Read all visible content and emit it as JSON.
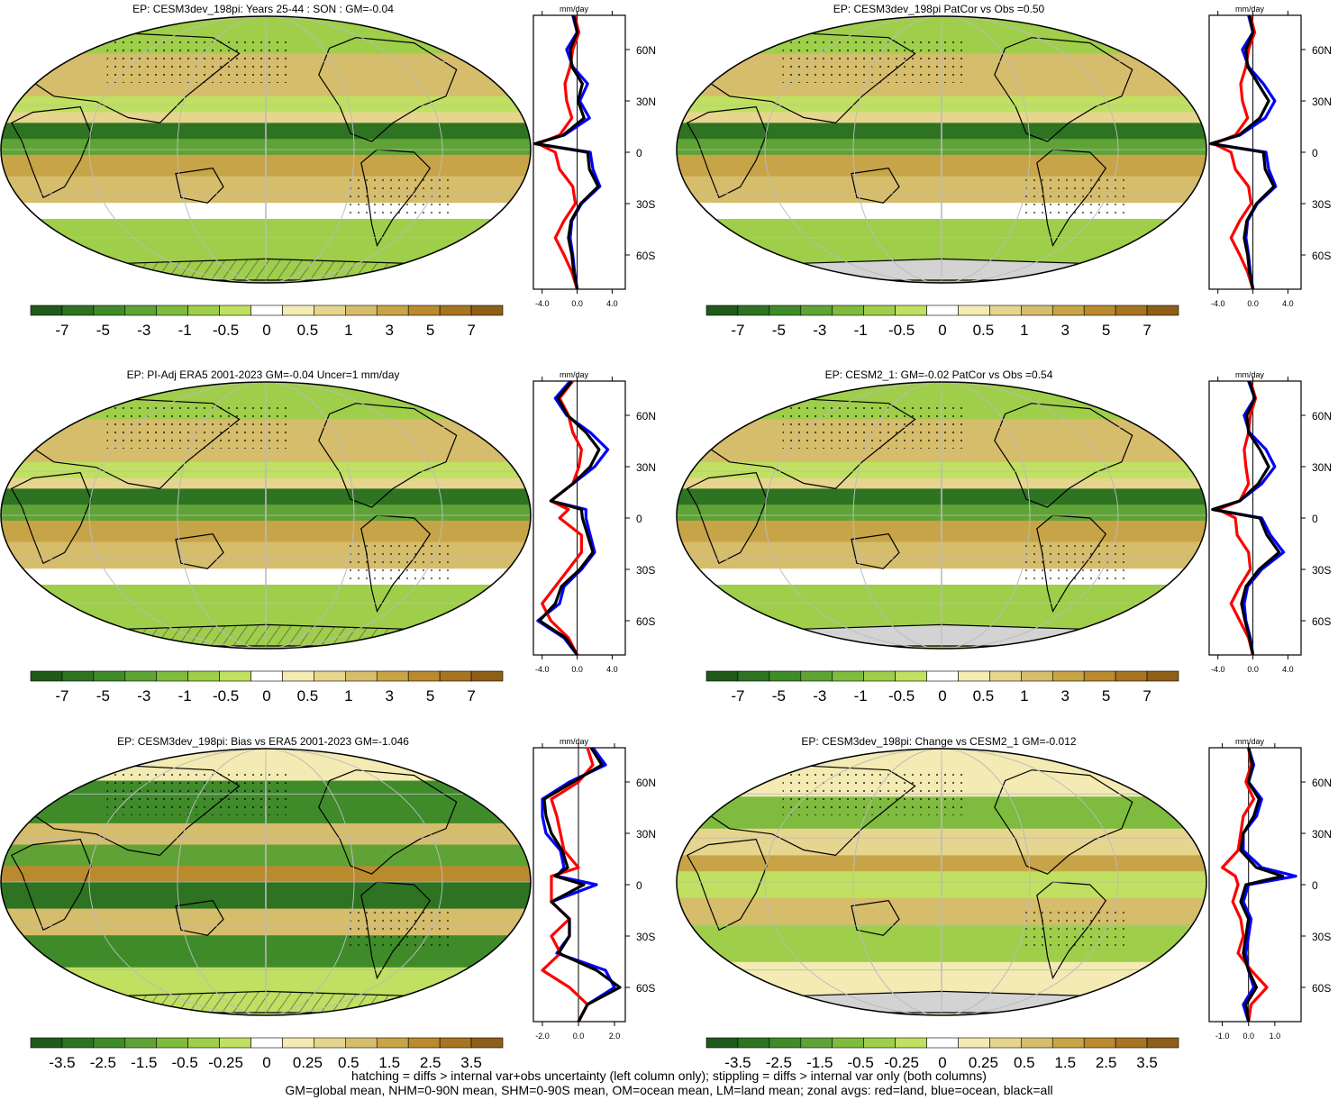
{
  "panels": [
    {
      "title": "EP: CESM3dev_198pi: Years 25-44 : SON : GM=-0.04",
      "colorbar": "full",
      "zonal_ticks": [
        "-4.0",
        "0.0",
        "4.0"
      ],
      "hatched_antarctica": true,
      "stippled": true
    },
    {
      "title": "EP: CESM3dev_198pi PatCor vs Obs =0.50",
      "colorbar": "full",
      "zonal_ticks": [
        "-4.0",
        "0.0",
        "4.0"
      ],
      "hatched_antarctica": false,
      "stippled": true
    },
    {
      "title": "EP: PI-Adj ERA5 2001-2023 GM=-0.04 Uncer=1 mm/day",
      "colorbar": "full",
      "zonal_ticks": [
        "-4.0",
        "0.0",
        "4.0"
      ],
      "hatched_antarctica": true,
      "stippled": true
    },
    {
      "title": "EP: CESM2_1: GM=-0.02 PatCor vs Obs =0.54",
      "colorbar": "full",
      "zonal_ticks": [
        "-4.0",
        "0.0",
        "4.0"
      ],
      "hatched_antarctica": false,
      "stippled": true
    },
    {
      "title": "EP: CESM3dev_198pi: Bias vs ERA5 2001-2023  GM=-1.046",
      "colorbar": "diff",
      "zonal_ticks": [
        "-2.0",
        "0.0",
        "2.0"
      ],
      "hatched_antarctica": true,
      "stippled": true
    },
    {
      "title": "EP: CESM3dev_198pi: Change vs CESM2_1 GM=-0.012",
      "colorbar": "diff",
      "zonal_ticks": [
        "-1.0",
        "0.0",
        "1.0"
      ],
      "hatched_antarctica": false,
      "stippled": true
    }
  ],
  "colorbars": {
    "full": {
      "labels": [
        "-7",
        "-5",
        "-3",
        "-1",
        "-0.5",
        "0",
        "0.5",
        "1",
        "3",
        "5",
        "7"
      ]
    },
    "diff": {
      "labels": [
        "-3.5",
        "-2.5",
        "-1.5",
        "-0.5",
        "-0.25",
        "0",
        "0.25",
        "0.5",
        "1.5",
        "2.5",
        "3.5"
      ]
    }
  },
  "palette": [
    "#1f5a1a",
    "#2e7322",
    "#3f8b2a",
    "#5fa336",
    "#7fbb3e",
    "#9fce4a",
    "#bfe060",
    "#ffffff",
    "#f3ebb3",
    "#e6d58e",
    "#d6bd6b",
    "#c8a448",
    "#b98a2e",
    "#a67422",
    "#8e5f18"
  ],
  "zonal_units": "mm/day",
  "lat_labels": [
    "60N",
    "30N",
    "0",
    "30S",
    "60S"
  ],
  "zonal_line_colors": {
    "land": "#ff0000",
    "ocean": "#0000ff",
    "all": "#000000"
  },
  "footer": [
    "hatching = diffs > internal var+obs uncertainty (left column only); stippling = diffs > internal var only (both columns)",
    "GM=global mean, NHM=0-90N mean, SHM=0-90S mean, OM=ocean mean, LM=land mean; zonal avgs: red=land, blue=ocean, black=all"
  ],
  "chart_data": [
    {
      "type": "line",
      "title": "EP: CESM3dev_198pi: Years 25-44 : SON : GM=-0.04",
      "xlabel": "mm/day",
      "xlim": [
        -5,
        5.5
      ],
      "ylim": [
        -80,
        80
      ],
      "y_ticks": [
        60,
        30,
        0,
        -30,
        -60
      ],
      "y": [
        80,
        70,
        60,
        50,
        40,
        30,
        20,
        10,
        5,
        0,
        -10,
        -20,
        -30,
        -40,
        -50,
        -60,
        -70,
        -80
      ],
      "series": [
        {
          "name": "land",
          "color": "#ff0000",
          "values": [
            -0.3,
            0.2,
            -0.5,
            -0.8,
            -1.4,
            -1.2,
            -0.6,
            -2.0,
            -4.5,
            -2.5,
            -2.0,
            -0.5,
            -0.2,
            -1.5,
            -2.5,
            -1.5,
            -0.6,
            0
          ]
        },
        {
          "name": "ocean",
          "color": "#0000ff",
          "values": [
            -0.5,
            0,
            -1.2,
            -0.5,
            1.2,
            0.3,
            1.4,
            -1.5,
            -4.8,
            1.5,
            1.8,
            2.6,
            0.5,
            -0.6,
            -0.8,
            -0.5,
            -0.3,
            0
          ]
        },
        {
          "name": "all",
          "color": "#000000",
          "values": [
            -0.4,
            0,
            -0.8,
            -0.6,
            0.6,
            0.1,
            0.8,
            -1.6,
            -4.8,
            1.2,
            1.4,
            2.4,
            0.4,
            -0.7,
            -1.0,
            -0.6,
            -0.4,
            0
          ]
        }
      ]
    },
    {
      "type": "line",
      "title": "EP: CESM3dev_198pi PatCor vs Obs =0.50",
      "xlabel": "mm/day",
      "xlim": [
        -5,
        5.5
      ],
      "ylim": [
        -80,
        80
      ],
      "y_ticks": [
        60,
        30,
        0,
        -30,
        -60
      ],
      "y": [
        80,
        70,
        60,
        50,
        40,
        30,
        20,
        10,
        5,
        0,
        -10,
        -20,
        -30,
        -40,
        -50,
        -60,
        -70,
        -80
      ],
      "series": [
        {
          "name": "land",
          "color": "#ff0000",
          "values": [
            -0.3,
            0.2,
            -0.5,
            -0.8,
            -1.4,
            -1.2,
            -0.6,
            -2.0,
            -4.5,
            -2.5,
            -2.0,
            -0.5,
            -0.2,
            -1.5,
            -2.5,
            -1.5,
            -0.6,
            0
          ]
        },
        {
          "name": "ocean",
          "color": "#0000ff",
          "values": [
            -0.5,
            0,
            -1.2,
            -0.5,
            1.2,
            2.5,
            1.4,
            -1.5,
            -4.8,
            1.5,
            1.8,
            2.6,
            0.5,
            -0.6,
            -0.8,
            -0.5,
            -0.3,
            0
          ]
        },
        {
          "name": "all",
          "color": "#000000",
          "values": [
            -0.4,
            0,
            -0.8,
            -0.6,
            0.6,
            1.8,
            0.8,
            -1.6,
            -4.8,
            1.2,
            1.4,
            2.4,
            0.4,
            -0.7,
            -1.0,
            -0.6,
            -0.4,
            0
          ]
        }
      ]
    },
    {
      "type": "line",
      "title": "EP: PI-Adj ERA5 2001-2023 GM=-0.04 Uncer=1 mm/day",
      "xlabel": "mm/day",
      "xlim": [
        -5,
        5.5
      ],
      "ylim": [
        -80,
        80
      ],
      "y_ticks": [
        60,
        30,
        0,
        -30,
        -60
      ],
      "y": [
        80,
        70,
        60,
        50,
        40,
        30,
        20,
        10,
        5,
        0,
        -10,
        -20,
        -30,
        -40,
        -50,
        -60,
        -70,
        -80
      ],
      "series": [
        {
          "name": "land",
          "color": "#ff0000",
          "values": [
            -0.5,
            -2.0,
            -1.0,
            -0.5,
            0.5,
            0.2,
            -0.5,
            -3.0,
            -1.0,
            -2.0,
            0.5,
            0.5,
            -1.0,
            -2.5,
            -4.0,
            -3.0,
            -1.0,
            0
          ]
        },
        {
          "name": "ocean",
          "color": "#0000ff",
          "values": [
            -0.8,
            -2.5,
            -1.2,
            1.5,
            3.5,
            2.0,
            -0.5,
            -3.0,
            1.0,
            1.0,
            1.5,
            2.0,
            0.5,
            -1.5,
            -2.0,
            -4.5,
            -1.5,
            0
          ]
        },
        {
          "name": "all",
          "color": "#000000",
          "values": [
            -0.6,
            -2.2,
            -1.1,
            1.0,
            2.5,
            1.5,
            -0.5,
            -3.0,
            0.5,
            0.6,
            1.2,
            1.8,
            0.3,
            -1.8,
            -2.5,
            -4.3,
            -1.3,
            0
          ]
        }
      ]
    },
    {
      "type": "line",
      "title": "EP: CESM2_1: GM=-0.02 PatCor vs Obs =0.54",
      "xlabel": "mm/day",
      "xlim": [
        -5,
        5.5
      ],
      "ylim": [
        -80,
        80
      ],
      "y_ticks": [
        60,
        30,
        0,
        -30,
        -60
      ],
      "y": [
        80,
        70,
        60,
        50,
        40,
        30,
        20,
        10,
        5,
        0,
        -10,
        -20,
        -30,
        -40,
        -50,
        -60,
        -70,
        -80
      ],
      "series": [
        {
          "name": "land",
          "color": "#ff0000",
          "values": [
            -0.3,
            0.3,
            -0.3,
            -0.5,
            -1.0,
            -0.8,
            -0.5,
            -1.5,
            -4.0,
            -2.0,
            -1.8,
            -0.5,
            -0.3,
            -1.5,
            -2.5,
            -1.5,
            -0.5,
            0
          ]
        },
        {
          "name": "ocean",
          "color": "#0000ff",
          "values": [
            -0.5,
            0.2,
            -1.0,
            -0.4,
            1.5,
            2.5,
            1.0,
            -1.5,
            -4.6,
            1.0,
            2.0,
            3.5,
            1.0,
            -0.6,
            -1.0,
            -0.8,
            -0.3,
            0
          ]
        },
        {
          "name": "all",
          "color": "#000000",
          "values": [
            -0.4,
            0.2,
            -0.7,
            -0.5,
            0.8,
            1.8,
            0.6,
            -1.5,
            -4.6,
            0.8,
            1.6,
            3.0,
            0.7,
            -0.8,
            -1.3,
            -0.9,
            -0.4,
            0
          ]
        }
      ]
    },
    {
      "type": "line",
      "title": "EP: CESM3dev_198pi: Bias vs ERA5 2001-2023  GM=-1.046",
      "xlabel": "mm/day",
      "xlim": [
        -2.5,
        2.6
      ],
      "ylim": [
        -80,
        80
      ],
      "y_ticks": [
        60,
        30,
        0,
        -30,
        -60
      ],
      "y": [
        80,
        70,
        60,
        50,
        40,
        30,
        20,
        10,
        5,
        0,
        -10,
        -20,
        -30,
        -40,
        -50,
        -60,
        -70,
        -80
      ],
      "series": [
        {
          "name": "land",
          "color": "#ff0000",
          "values": [
            0.5,
            0.8,
            0,
            -1.5,
            -1.2,
            -1.0,
            -0.8,
            0,
            -1.5,
            -1.5,
            -1.5,
            -0.5,
            -1.5,
            -1.0,
            -2.0,
            -0.5,
            0.5,
            0
          ]
        },
        {
          "name": "ocean",
          "color": "#0000ff",
          "values": [
            0.8,
            1.5,
            -0.5,
            -2.0,
            -2.0,
            -1.8,
            -1.0,
            -0.8,
            -1.2,
            1.0,
            -1.5,
            -0.5,
            -0.5,
            -1.2,
            1.5,
            2.0,
            0.5,
            0
          ]
        },
        {
          "name": "all",
          "color": "#000000",
          "values": [
            0.7,
            1.3,
            -0.3,
            -1.9,
            -1.8,
            -1.5,
            -0.9,
            -0.6,
            -1.3,
            0.3,
            -1.5,
            -0.5,
            -0.5,
            -1.1,
            1.0,
            2.3,
            0.5,
            0
          ]
        }
      ]
    },
    {
      "type": "line",
      "title": "EP: CESM3dev_198pi: Change vs CESM2_1 GM=-0.012",
      "xlabel": "mm/day",
      "xlim": [
        -1.5,
        2.0
      ],
      "ylim": [
        -80,
        80
      ],
      "y_ticks": [
        60,
        30,
        0,
        -30,
        -60
      ],
      "y": [
        80,
        70,
        60,
        50,
        40,
        30,
        20,
        10,
        5,
        0,
        -10,
        -20,
        -30,
        -40,
        -50,
        -60,
        -70,
        -80
      ],
      "series": [
        {
          "name": "land",
          "color": "#ff0000",
          "values": [
            0,
            0.1,
            -0.1,
            0.2,
            -0.2,
            -0.3,
            -0.4,
            -1.0,
            -0.5,
            -0.4,
            -0.6,
            -0.3,
            -0.2,
            -0.4,
            0.1,
            0.7,
            0.1,
            0
          ]
        },
        {
          "name": "ocean",
          "color": "#0000ff",
          "values": [
            0,
            0.2,
            0,
            0.5,
            0.3,
            -0.2,
            -0.2,
            0.5,
            1.8,
            0,
            -0.2,
            0.1,
            0,
            -0.1,
            0,
            0.2,
            -0.2,
            0
          ]
        },
        {
          "name": "all",
          "color": "#000000",
          "values": [
            0,
            0.15,
            0,
            0.4,
            0.2,
            -0.2,
            -0.3,
            0.3,
            1.3,
            -0.1,
            -0.3,
            0,
            -0.1,
            -0.2,
            0,
            0.3,
            -0.1,
            0
          ]
        }
      ]
    }
  ]
}
